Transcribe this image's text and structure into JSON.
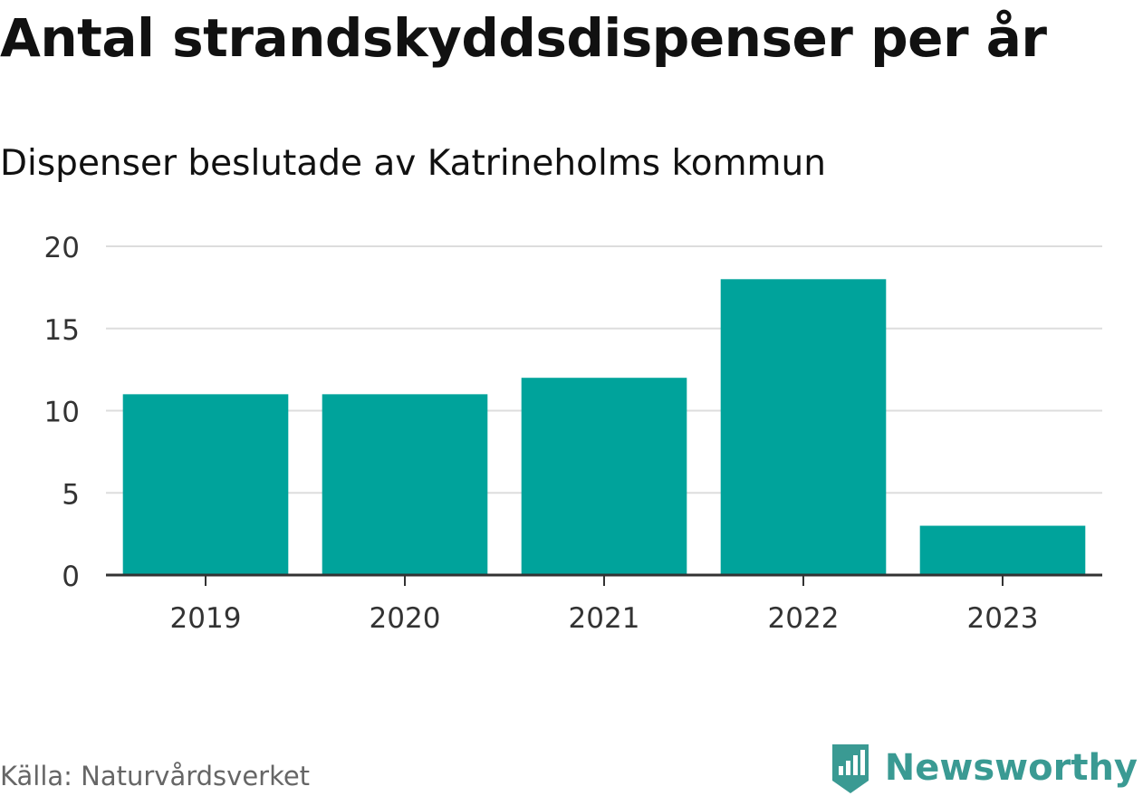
{
  "title": "Antal strandskyddsdispenser per år",
  "subtitle": "Dispenser beslutade av Katrineholms kommun",
  "source": "Källa: Naturvårdsverket",
  "brand": {
    "name": "Newsworthy",
    "logo_icon": "newsworthy-logo-icon",
    "color": "#3a9a93"
  },
  "chart_data": {
    "type": "bar",
    "title": "Antal strandskyddsdispenser per år",
    "subtitle": "Dispenser beslutade av Katrineholms kommun",
    "categories": [
      "2019",
      "2020",
      "2021",
      "2022",
      "2023"
    ],
    "values": [
      11,
      11,
      12,
      18,
      3
    ],
    "xlabel": "",
    "ylabel": "",
    "ylim": [
      0,
      20
    ],
    "yticks": [
      0,
      5,
      10,
      15,
      20
    ],
    "grid": true,
    "bar_color": "#00a39b",
    "grid_color": "#dddddd",
    "axis_color": "#333333"
  }
}
